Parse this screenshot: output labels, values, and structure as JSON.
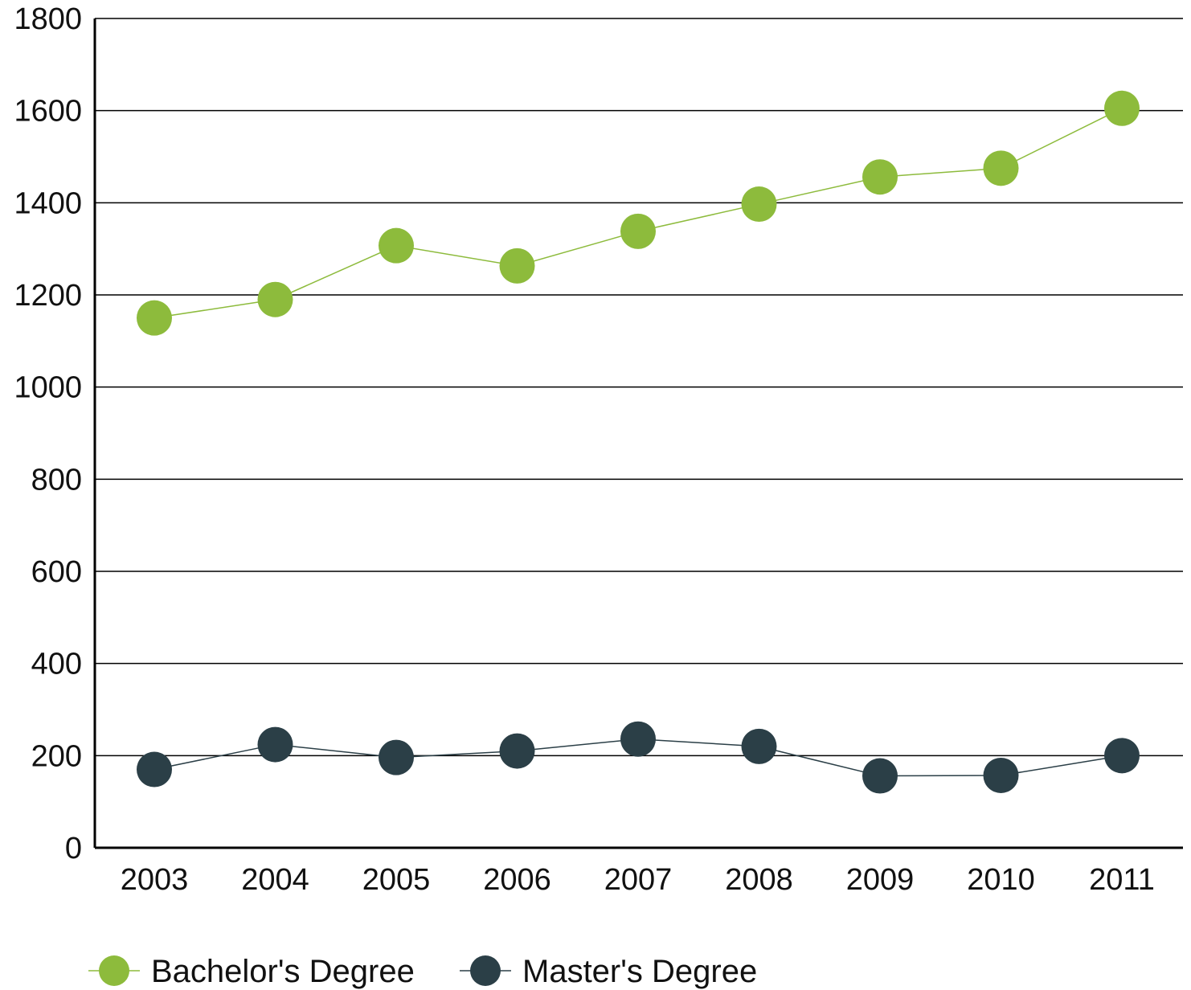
{
  "chart_data": {
    "type": "line",
    "categories": [
      "2003",
      "2004",
      "2005",
      "2006",
      "2007",
      "2008",
      "2009",
      "2010",
      "2011"
    ],
    "series": [
      {
        "name": "Bachelor's Degree",
        "color": "#8dbb3c",
        "values": [
          1150,
          1190,
          1307,
          1263,
          1338,
          1397,
          1456,
          1475,
          1605
        ]
      },
      {
        "name": "Master's Degree",
        "color": "#2b3f47",
        "values": [
          170,
          224,
          196,
          210,
          236,
          220,
          156,
          157,
          200
        ]
      }
    ],
    "ylim": [
      0,
      1800
    ],
    "yticks": [
      0,
      200,
      400,
      600,
      800,
      1000,
      1200,
      1400,
      1600,
      1800
    ],
    "grid": true,
    "legend": "bottom-left",
    "title": "",
    "xlabel": "",
    "ylabel": ""
  }
}
